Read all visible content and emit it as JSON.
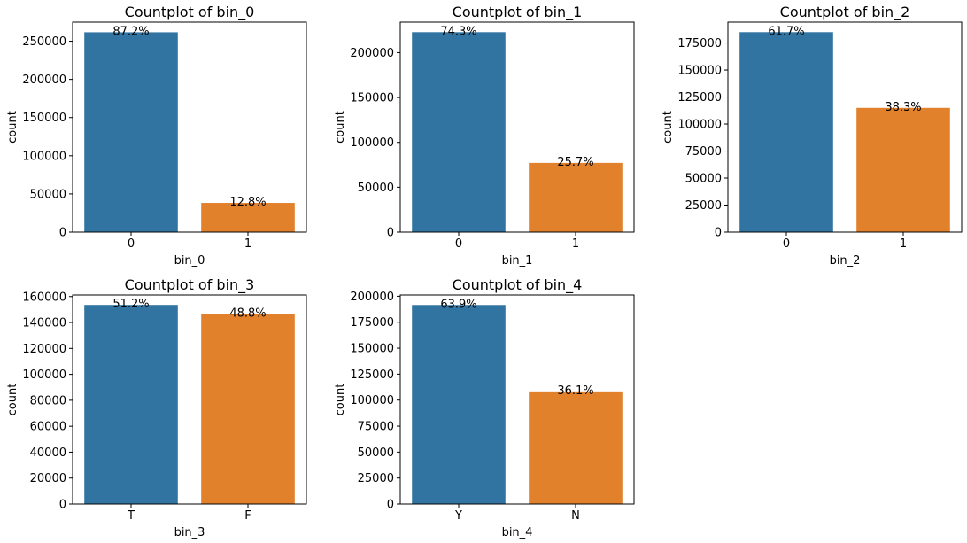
{
  "colors": {
    "first_bar": "#3274a1",
    "second_bar": "#e1812c",
    "axes": "#000000",
    "background": "#ffffff"
  },
  "chart_data": [
    {
      "type": "bar",
      "title": "Countplot of bin_0",
      "xlabel": "bin_0",
      "ylabel": "count",
      "categories": [
        "0",
        "1"
      ],
      "values": [
        261750,
        38250
      ],
      "percent_labels": [
        "87.2%",
        "12.8%"
      ],
      "ylim": [
        0,
        275000
      ],
      "yticks": [
        0,
        50000,
        100000,
        150000,
        200000,
        250000
      ],
      "grid": false,
      "legend": "none"
    },
    {
      "type": "bar",
      "title": "Countplot of bin_1",
      "xlabel": "bin_1",
      "ylabel": "count",
      "categories": [
        "0",
        "1"
      ],
      "values": [
        222850,
        77150
      ],
      "percent_labels": [
        "74.3%",
        "25.7%"
      ],
      "ylim": [
        0,
        234000
      ],
      "yticks": [
        0,
        50000,
        100000,
        150000,
        200000
      ],
      "grid": false,
      "legend": "none"
    },
    {
      "type": "bar",
      "title": "Countplot of bin_2",
      "xlabel": "bin_2",
      "ylabel": "count",
      "categories": [
        "0",
        "1"
      ],
      "values": [
        185050,
        114950
      ],
      "percent_labels": [
        "61.7%",
        "38.3%"
      ],
      "ylim": [
        0,
        194300
      ],
      "yticks": [
        0,
        25000,
        50000,
        75000,
        100000,
        125000,
        150000,
        175000
      ],
      "grid": false,
      "legend": "none"
    },
    {
      "type": "bar",
      "title": "Countplot of bin_3",
      "xlabel": "bin_3",
      "ylabel": "count",
      "categories": [
        "T",
        "F"
      ],
      "values": [
        153550,
        146450
      ],
      "percent_labels": [
        "51.2%",
        "48.8%"
      ],
      "ylim": [
        0,
        161200
      ],
      "yticks": [
        0,
        20000,
        40000,
        60000,
        80000,
        100000,
        120000,
        140000,
        160000
      ],
      "grid": false,
      "legend": "none"
    },
    {
      "type": "bar",
      "title": "Countplot of bin_4",
      "xlabel": "bin_4",
      "ylabel": "count",
      "categories": [
        "Y",
        "N"
      ],
      "values": [
        191600,
        108400
      ],
      "percent_labels": [
        "63.9%",
        "36.1%"
      ],
      "ylim": [
        0,
        201200
      ],
      "yticks": [
        0,
        25000,
        50000,
        75000,
        100000,
        125000,
        150000,
        175000,
        200000
      ],
      "grid": false,
      "legend": "none"
    }
  ]
}
